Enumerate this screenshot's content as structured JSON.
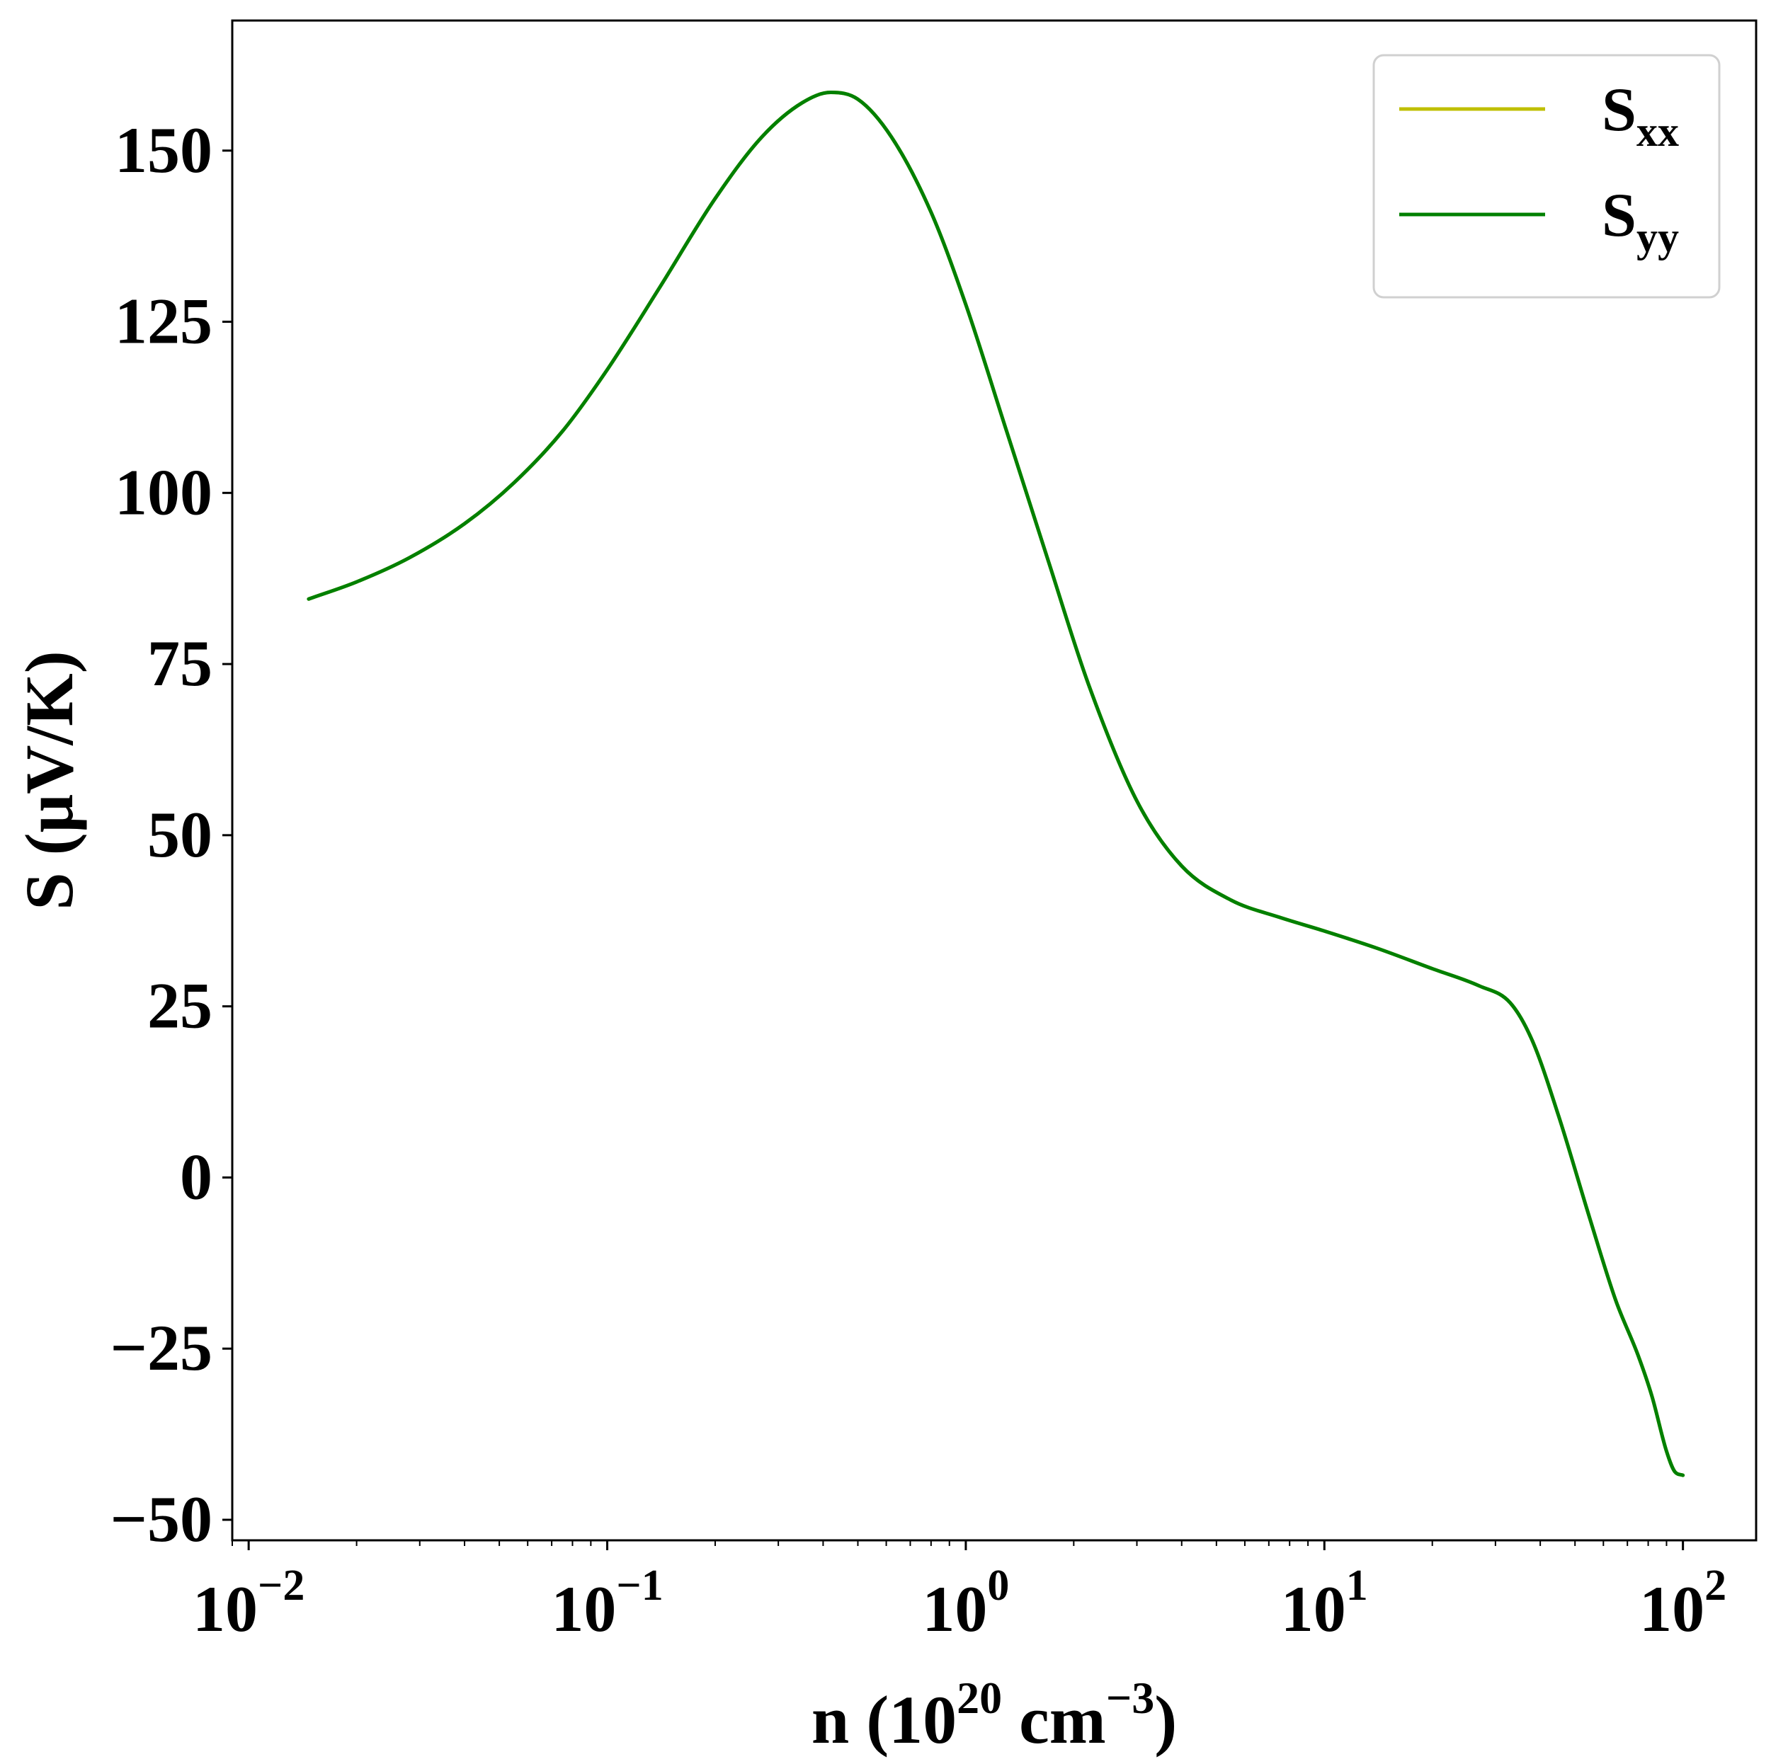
{
  "chart_data": {
    "type": "line",
    "xscale": "log",
    "xlim": [
      0.009,
      160
    ],
    "ylim": [
      -53,
      169
    ],
    "x_ticks": [
      {
        "value": 0.01,
        "base": "10",
        "exp": "−2"
      },
      {
        "value": 0.1,
        "base": "10",
        "exp": "−1"
      },
      {
        "value": 1,
        "base": "10",
        "exp": "0"
      },
      {
        "value": 10,
        "base": "10",
        "exp": "1"
      },
      {
        "value": 100,
        "base": "10",
        "exp": "2"
      }
    ],
    "y_ticks": [
      {
        "value": -50,
        "label": "−50"
      },
      {
        "value": -25,
        "label": "−25"
      },
      {
        "value": 0,
        "label": "0"
      },
      {
        "value": 25,
        "label": "25"
      },
      {
        "value": 50,
        "label": "50"
      },
      {
        "value": 75,
        "label": "75"
      },
      {
        "value": 100,
        "label": "100"
      },
      {
        "value": 125,
        "label": "125"
      },
      {
        "value": 150,
        "label": "150"
      }
    ],
    "xlabel": {
      "prefix": "n (10",
      "sup1": "20",
      "mid": " cm",
      "sup2": "−3",
      "suffix": ")"
    },
    "ylabel": "S (μV/K)",
    "legend_position": "top-right",
    "grid": false,
    "x": [
      0.0147,
      0.02,
      0.028,
      0.04,
      0.055,
      0.075,
      0.1,
      0.14,
      0.2,
      0.27,
      0.35,
      0.42,
      0.5,
      0.62,
      0.8,
      1.0,
      1.3,
      1.7,
      2.2,
      3.0,
      4.0,
      5.5,
      7.5,
      10,
      14,
      20,
      27,
      33,
      38,
      45,
      55,
      65,
      75,
      82,
      90,
      95,
      100
    ],
    "series": [
      {
        "name": "S_xx",
        "label_main": "S",
        "label_sub": "xx",
        "color": "#bfbf00",
        "values": [
          84.5,
          87,
          90.5,
          95.5,
          101.5,
          109,
          118,
          130,
          143,
          152,
          157,
          158.5,
          157.5,
          152,
          141,
          127.5,
          109,
          90,
          72,
          55,
          45.5,
          40.5,
          38,
          36,
          33.5,
          30.5,
          28,
          25.5,
          20,
          9,
          -6,
          -18,
          -26,
          -32,
          -40,
          -43,
          -43.5
        ]
      },
      {
        "name": "S_yy",
        "label_main": "S",
        "label_sub": "yy",
        "color": "#008000",
        "values": [
          84.5,
          87,
          90.5,
          95.5,
          101.5,
          109,
          118,
          130,
          143,
          152,
          157,
          158.5,
          157.5,
          152,
          141,
          127.5,
          109,
          90,
          72,
          55,
          45.5,
          40.5,
          38,
          36,
          33.5,
          30.5,
          28,
          25.5,
          20,
          9,
          -6,
          -18,
          -26,
          -32,
          -40,
          -43,
          -43.5
        ]
      }
    ]
  }
}
